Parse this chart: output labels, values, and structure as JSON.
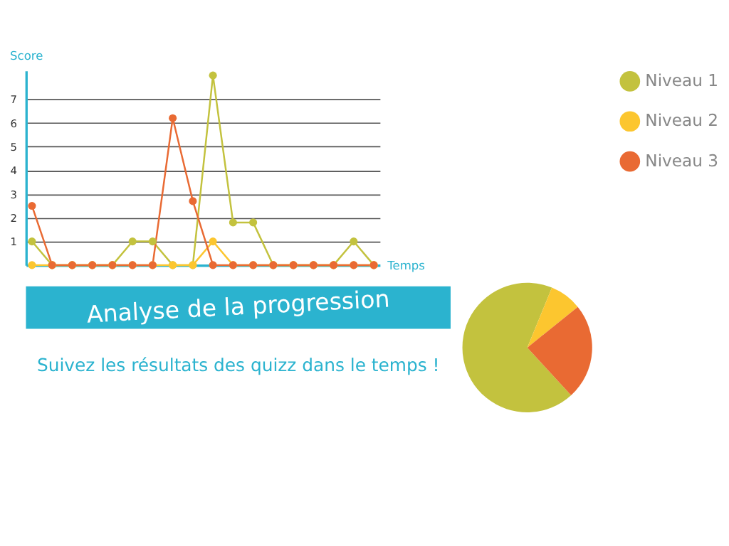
{
  "chart_data": [
    {
      "type": "line",
      "xlabel": "Temps",
      "ylabel": "Score",
      "categories": [
        null,
        null,
        null,
        null,
        null,
        null,
        null,
        null,
        null,
        null,
        null,
        null,
        null,
        null,
        null,
        null,
        null,
        null
      ],
      "series": [
        {
          "name": "Niveau 1",
          "color": "#c3c23e",
          "values": [
            1,
            0,
            0,
            0,
            0,
            1,
            1,
            0,
            0,
            8,
            1.8,
            1.8,
            0,
            0,
            0,
            0,
            1,
            0
          ]
        },
        {
          "name": "Niveau 2",
          "color": "#fcc62f",
          "values": [
            0,
            0,
            0,
            0,
            0,
            0,
            0,
            0,
            0,
            1,
            0,
            0,
            0,
            0,
            0,
            0,
            0,
            0
          ]
        },
        {
          "name": "Niveau 3",
          "color": "#e96a33",
          "values": [
            2.5,
            0,
            0,
            0,
            0,
            0,
            0,
            6.2,
            2.7,
            0,
            0,
            0,
            0,
            0,
            0,
            0,
            0,
            0
          ]
        }
      ],
      "ylim": [
        0,
        8.2
      ],
      "yticks": [
        1,
        2,
        3,
        4,
        5,
        6,
        7
      ],
      "grid": "y",
      "legend": "right",
      "marker": "circle",
      "line_style": "solid",
      "tick_labels": "y"
    },
    {
      "type": "pie",
      "title": "Analyse de la progression",
      "subtitle": "Suivez les résultats des quizz dans le temps !",
      "categories": [
        null,
        null,
        null
      ],
      "values": [
        68,
        8,
        24
      ],
      "colors": [
        "#c3c23e",
        "#fcc62f",
        "#e96a33"
      ],
      "legend": false
    }
  ]
}
